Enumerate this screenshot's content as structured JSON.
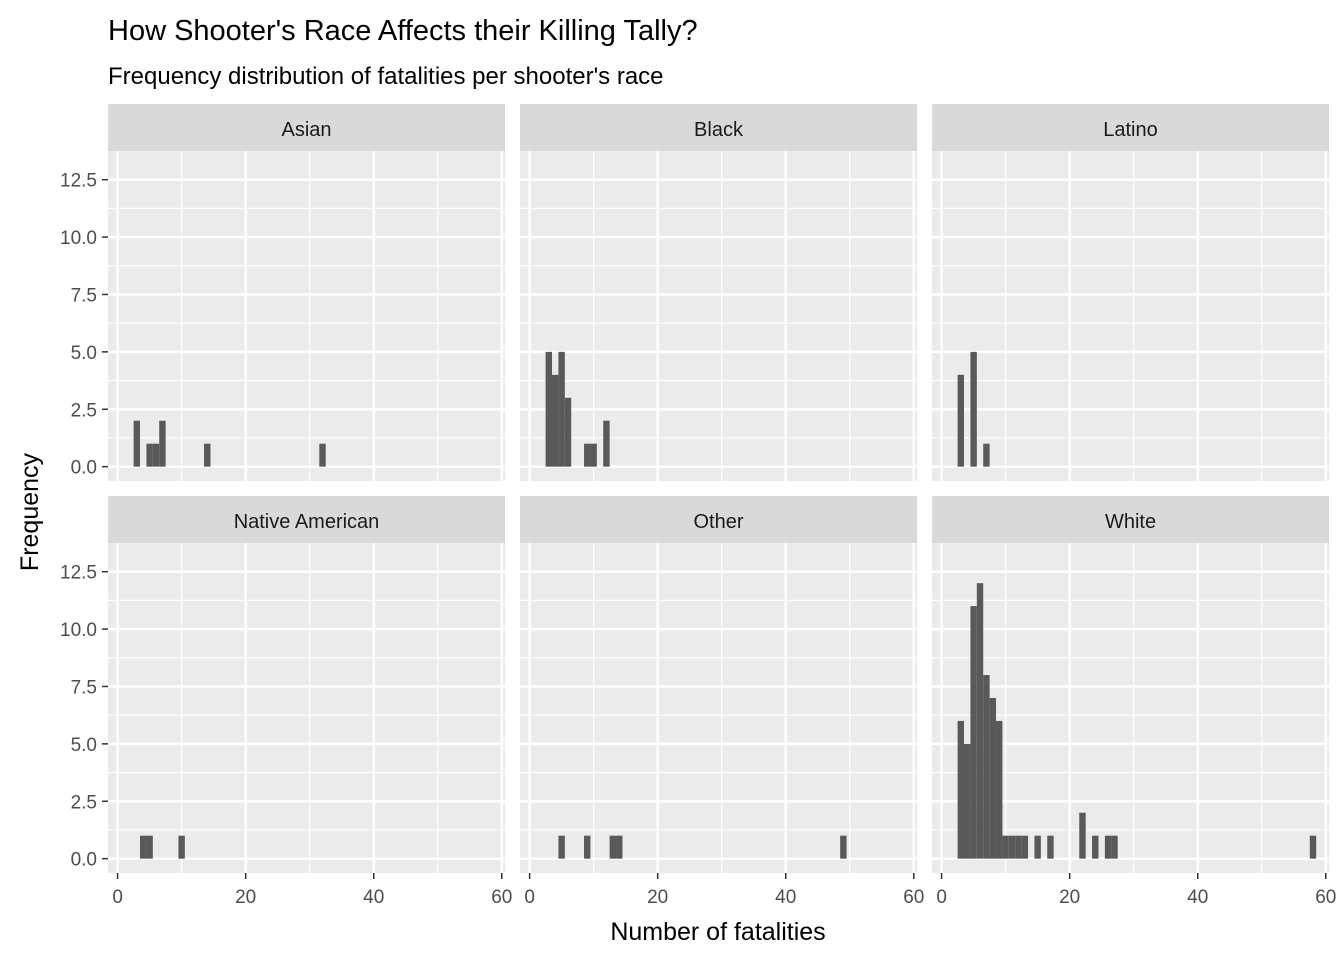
{
  "chart_data": {
    "type": "bar",
    "title": "How Shooter's Race Affects their Killing Tally?",
    "subtitle": "Frequency distribution of fatalities per shooter's race",
    "xlabel": "Number of fatalities",
    "ylabel": "Frequency",
    "xlim": [
      0,
      60
    ],
    "ylim": [
      0,
      12.5
    ],
    "x_ticks": [
      0,
      20,
      40,
      60
    ],
    "y_ticks": [
      "0.0",
      "2.5",
      "5.0",
      "7.5",
      "10.0",
      "12.5"
    ],
    "grid": true,
    "colors": {
      "bar": "#595959",
      "panel": "#ebebeb",
      "strip": "#d9d9d9",
      "grid": "#ffffff"
    },
    "panels": [
      {
        "name": "Asian",
        "bars": [
          {
            "x": 3,
            "y": 2
          },
          {
            "x": 5,
            "y": 1
          },
          {
            "x": 6,
            "y": 1
          },
          {
            "x": 7,
            "y": 2
          },
          {
            "x": 14,
            "y": 1
          },
          {
            "x": 32,
            "y": 1
          }
        ]
      },
      {
        "name": "Black",
        "bars": [
          {
            "x": 3,
            "y": 5
          },
          {
            "x": 4,
            "y": 4
          },
          {
            "x": 5,
            "y": 5
          },
          {
            "x": 6,
            "y": 3
          },
          {
            "x": 9,
            "y": 1
          },
          {
            "x": 10,
            "y": 1
          },
          {
            "x": 12,
            "y": 2
          }
        ]
      },
      {
        "name": "Latino",
        "bars": [
          {
            "x": 3,
            "y": 4
          },
          {
            "x": 5,
            "y": 5
          },
          {
            "x": 7,
            "y": 1
          }
        ]
      },
      {
        "name": "Native American",
        "bars": [
          {
            "x": 4,
            "y": 1
          },
          {
            "x": 5,
            "y": 1
          },
          {
            "x": 10,
            "y": 1
          }
        ]
      },
      {
        "name": "Other",
        "bars": [
          {
            "x": 5,
            "y": 1
          },
          {
            "x": 9,
            "y": 1
          },
          {
            "x": 13,
            "y": 1
          },
          {
            "x": 14,
            "y": 1
          },
          {
            "x": 49,
            "y": 1
          }
        ]
      },
      {
        "name": "White",
        "bars": [
          {
            "x": 3,
            "y": 6
          },
          {
            "x": 4,
            "y": 5
          },
          {
            "x": 5,
            "y": 11
          },
          {
            "x": 6,
            "y": 12
          },
          {
            "x": 7,
            "y": 8
          },
          {
            "x": 8,
            "y": 7
          },
          {
            "x": 9,
            "y": 6
          },
          {
            "x": 10,
            "y": 1
          },
          {
            "x": 11,
            "y": 1
          },
          {
            "x": 12,
            "y": 1
          },
          {
            "x": 13,
            "y": 1
          },
          {
            "x": 15,
            "y": 1
          },
          {
            "x": 17,
            "y": 1
          },
          {
            "x": 22,
            "y": 2
          },
          {
            "x": 24,
            "y": 1
          },
          {
            "x": 26,
            "y": 1
          },
          {
            "x": 27,
            "y": 1
          },
          {
            "x": 58,
            "y": 1
          }
        ]
      }
    ]
  }
}
